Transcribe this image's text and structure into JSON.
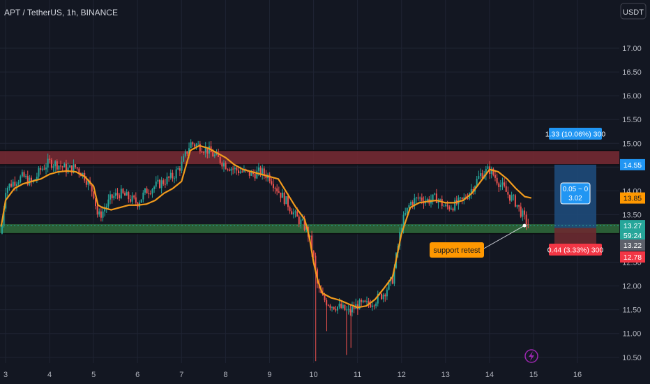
{
  "header": {
    "symbol": "APT / TetherUS, 1h, BINANCE",
    "currency_button": "USDT"
  },
  "colors": {
    "background": "#131722",
    "grid": "#1f2433",
    "candle_up": "#26a69a",
    "candle_down": "#ef5350",
    "ma_line": "#f29b1d",
    "resistance_zone": "#7a2a33",
    "support_zone": "#2f6b3a",
    "target_zone": "#1e4a7a",
    "stop_zone": "#6b2a30",
    "target_label": "#2196f3",
    "stop_label": "#f23645",
    "annotation_bg": "#ff9800",
    "axis_text": "#b2b5be"
  },
  "price_axis": {
    "ticks": [
      "17.00",
      "16.50",
      "16.00",
      "15.50",
      "15.00",
      "14.50",
      "14.00",
      "13.50",
      "12.50",
      "12.00",
      "11.50",
      "11.00",
      "10.50"
    ]
  },
  "time_axis": {
    "ticks": [
      "3",
      "4",
      "5",
      "6",
      "7",
      "8",
      "9",
      "10",
      "11",
      "12",
      "13",
      "14",
      "15",
      "16"
    ]
  },
  "zones": {
    "resistance": {
      "from": 14.55,
      "to": 14.85
    },
    "support": {
      "from": 13.1,
      "to": 13.3
    }
  },
  "position": {
    "entry": 13.22,
    "target": 14.55,
    "stop": 12.78,
    "target_label": "1.33 (10.06%) 300",
    "stop_label": "0.44 (3.33%) 300",
    "center_label_line1": "0.05 ~ 0",
    "center_label_line2": "3.02"
  },
  "price_labels": {
    "target": "14.55",
    "ma_value": "13.85",
    "last_price": "13.27",
    "countdown": "59:24",
    "entry": "13.22",
    "stop": "12.78"
  },
  "annotation": {
    "text": "support retest"
  },
  "chart_data": {
    "type": "line",
    "title": "APT / TetherUS, 1h, BINANCE",
    "xlabel": "",
    "ylabel": "",
    "ylim": [
      10.35,
      17.25
    ],
    "x_unit": "day of month",
    "grid": false,
    "series": [
      {
        "role": "price",
        "x": [
          2.9,
          3.0,
          3.2,
          3.4,
          3.6,
          3.8,
          4.0,
          4.2,
          4.4,
          4.6,
          4.8,
          5.0,
          5.1,
          5.2,
          5.4,
          5.6,
          5.8,
          6.0,
          6.2,
          6.4,
          6.6,
          6.8,
          7.0,
          7.2,
          7.4,
          7.6,
          7.8,
          8.0,
          8.2,
          8.4,
          8.6,
          8.8,
          9.0,
          9.2,
          9.4,
          9.6,
          9.8,
          9.9,
          10.0,
          10.1,
          10.2,
          10.4,
          10.6,
          10.8,
          11.0,
          11.2,
          11.4,
          11.6,
          11.8,
          12.0,
          12.2,
          12.4,
          12.6,
          12.8,
          13.0,
          13.2,
          13.4,
          13.6,
          13.8,
          14.0,
          14.2,
          14.4,
          14.6,
          14.8,
          14.9
        ],
        "y": [
          13.1,
          14.05,
          14.2,
          14.3,
          14.15,
          14.45,
          14.6,
          14.55,
          14.45,
          14.5,
          14.3,
          13.95,
          13.45,
          13.55,
          13.85,
          13.95,
          13.85,
          13.75,
          14.0,
          14.1,
          14.2,
          14.3,
          14.55,
          15.0,
          14.95,
          14.85,
          14.7,
          14.55,
          14.45,
          14.4,
          14.35,
          14.4,
          14.3,
          14.0,
          13.75,
          13.45,
          13.25,
          13.05,
          12.6,
          11.95,
          11.75,
          11.6,
          11.55,
          11.45,
          11.6,
          11.6,
          11.7,
          11.85,
          12.15,
          13.3,
          13.75,
          13.85,
          13.8,
          13.85,
          13.65,
          13.7,
          13.8,
          14.05,
          14.35,
          14.45,
          14.2,
          13.95,
          13.75,
          13.4,
          13.27
        ]
      },
      {
        "role": "moving-average",
        "x": [
          2.9,
          3.0,
          3.2,
          3.4,
          3.6,
          3.8,
          4.0,
          4.2,
          4.4,
          4.6,
          4.8,
          5.0,
          5.1,
          5.2,
          5.4,
          5.6,
          5.8,
          6.0,
          6.2,
          6.4,
          6.6,
          6.8,
          7.0,
          7.2,
          7.4,
          7.6,
          7.8,
          8.0,
          8.2,
          8.4,
          8.6,
          8.8,
          9.0,
          9.2,
          9.4,
          9.6,
          9.8,
          9.9,
          10.0,
          10.1,
          10.2,
          10.4,
          10.6,
          10.8,
          11.0,
          11.2,
          11.4,
          11.6,
          11.8,
          12.0,
          12.2,
          12.4,
          12.6,
          12.8,
          13.0,
          13.2,
          13.4,
          13.6,
          13.8,
          14.0,
          14.2,
          14.4,
          14.6,
          14.8,
          14.95
        ],
        "y": [
          13.25,
          13.8,
          14.05,
          14.15,
          14.2,
          14.25,
          14.35,
          14.4,
          14.42,
          14.4,
          14.3,
          14.1,
          13.7,
          13.65,
          13.6,
          13.65,
          13.7,
          13.7,
          13.72,
          13.8,
          13.95,
          14.05,
          14.2,
          14.85,
          14.95,
          14.9,
          14.8,
          14.7,
          14.55,
          14.45,
          14.4,
          14.35,
          14.3,
          14.25,
          13.95,
          13.65,
          13.4,
          13.05,
          12.5,
          12.1,
          11.85,
          11.75,
          11.7,
          11.62,
          11.55,
          11.58,
          11.72,
          11.95,
          12.2,
          13.1,
          13.65,
          13.75,
          13.78,
          13.8,
          13.75,
          13.75,
          13.8,
          13.95,
          14.2,
          14.45,
          14.4,
          14.25,
          14.05,
          13.88,
          13.85
        ]
      }
    ]
  }
}
